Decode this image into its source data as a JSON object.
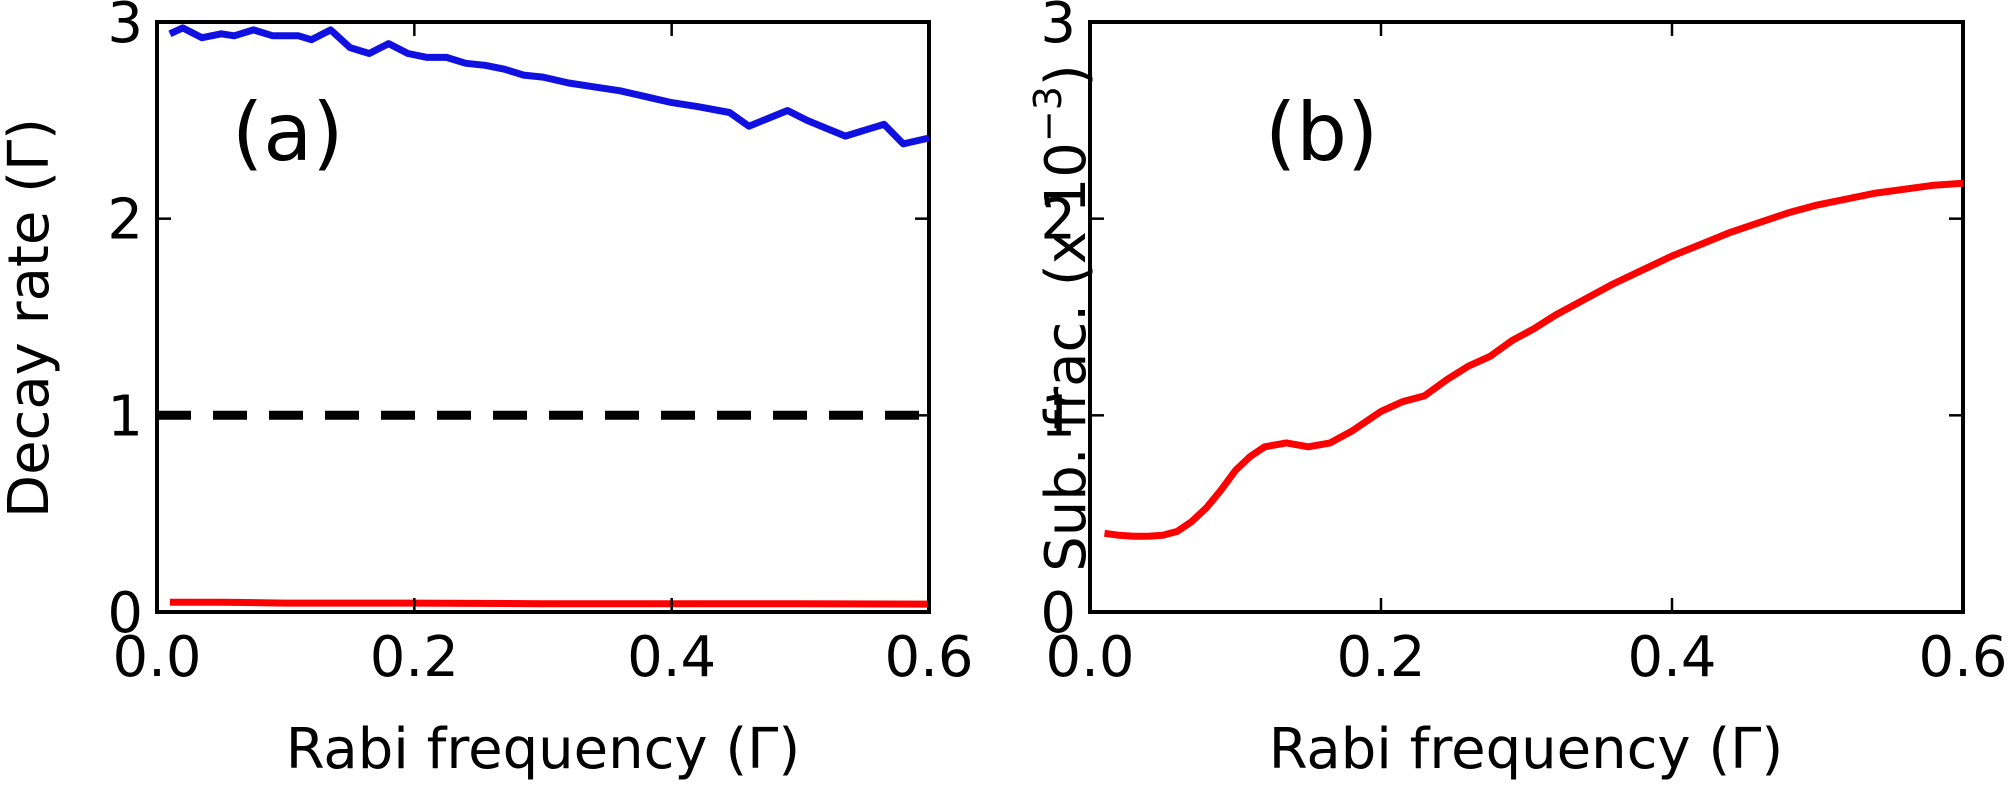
{
  "chart_data": [
    {
      "type": "line",
      "panel_label": "(a)",
      "xlabel": "Rabi frequency (Γ)",
      "ylabel": "Decay rate (Γ)",
      "xlim": [
        0.0,
        0.6
      ],
      "ylim": [
        0,
        3
      ],
      "xticks": [
        "0.0",
        "0.2",
        "0.4",
        "0.6"
      ],
      "yticks": [
        "0",
        "1",
        "2",
        "3"
      ],
      "grid": false,
      "series": [
        {
          "color": "#1010e0",
          "style": "solid",
          "x": [
            0.01,
            0.02,
            0.035,
            0.05,
            0.06,
            0.075,
            0.09,
            0.1,
            0.11,
            0.12,
            0.135,
            0.15,
            0.165,
            0.18,
            0.195,
            0.21,
            0.225,
            0.24,
            0.255,
            0.27,
            0.285,
            0.3,
            0.32,
            0.34,
            0.36,
            0.38,
            0.4,
            0.42,
            0.445,
            0.46,
            0.475,
            0.49,
            0.505,
            0.52,
            0.535,
            0.55,
            0.565,
            0.58,
            0.6
          ],
          "y": [
            2.94,
            2.97,
            2.92,
            2.94,
            2.93,
            2.96,
            2.93,
            2.93,
            2.93,
            2.91,
            2.96,
            2.87,
            2.84,
            2.89,
            2.84,
            2.82,
            2.82,
            2.79,
            2.78,
            2.76,
            2.73,
            2.72,
            2.69,
            2.67,
            2.65,
            2.62,
            2.59,
            2.57,
            2.54,
            2.47,
            2.51,
            2.55,
            2.5,
            2.46,
            2.42,
            2.45,
            2.48,
            2.38,
            2.41
          ]
        },
        {
          "color": "#000000",
          "style": "dashed",
          "x": [
            0.0,
            0.6
          ],
          "y": [
            1.0,
            1.0
          ]
        },
        {
          "color": "#ff0000",
          "style": "solid",
          "x": [
            0.01,
            0.05,
            0.1,
            0.2,
            0.3,
            0.4,
            0.5,
            0.6
          ],
          "y": [
            0.05,
            0.05,
            0.045,
            0.045,
            0.042,
            0.042,
            0.042,
            0.04
          ]
        }
      ]
    },
    {
      "type": "line",
      "panel_label": "(b)",
      "xlabel": "Rabi frequency (Γ)",
      "ylabel": "Sub. frac. (x 10",
      "ylabel_exponent": "−3",
      "ylabel_close": ")",
      "xlim": [
        0.0,
        0.6
      ],
      "ylim": [
        0,
        3
      ],
      "xticks": [
        "0.0",
        "0.2",
        "0.4",
        "0.6"
      ],
      "yticks": [
        "0",
        "1",
        "2",
        "3"
      ],
      "grid": false,
      "series": [
        {
          "color": "#ff0000",
          "style": "solid",
          "x": [
            0.01,
            0.02,
            0.03,
            0.04,
            0.05,
            0.06,
            0.07,
            0.08,
            0.09,
            0.1,
            0.11,
            0.12,
            0.135,
            0.15,
            0.165,
            0.18,
            0.2,
            0.215,
            0.23,
            0.245,
            0.26,
            0.275,
            0.29,
            0.305,
            0.32,
            0.34,
            0.36,
            0.38,
            0.4,
            0.42,
            0.44,
            0.46,
            0.48,
            0.5,
            0.52,
            0.54,
            0.56,
            0.58,
            0.6
          ],
          "y": [
            0.4,
            0.39,
            0.385,
            0.385,
            0.39,
            0.41,
            0.46,
            0.53,
            0.62,
            0.72,
            0.79,
            0.84,
            0.86,
            0.84,
            0.86,
            0.92,
            1.02,
            1.07,
            1.1,
            1.18,
            1.25,
            1.3,
            1.38,
            1.44,
            1.51,
            1.59,
            1.67,
            1.74,
            1.81,
            1.87,
            1.93,
            1.98,
            2.03,
            2.07,
            2.1,
            2.13,
            2.15,
            2.17,
            2.18
          ]
        }
      ]
    }
  ]
}
